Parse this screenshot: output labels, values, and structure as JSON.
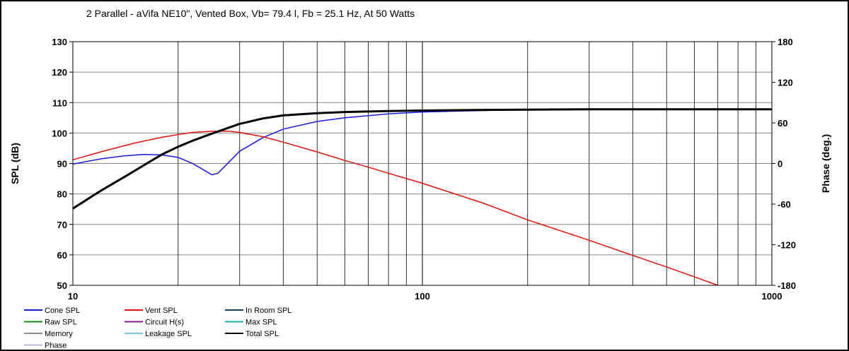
{
  "chart_data": {
    "type": "line",
    "title": "2 Parallel  - aVifa NE10\",  Vented Box, Vb= 79.4 l,  Fb = 25.1 Hz,  At 50 Watts",
    "ylabel": "SPL (dB)",
    "y2label": "Phase (deg.)",
    "xscale": "log",
    "xlim": [
      10,
      1000
    ],
    "ylim": [
      50,
      130
    ],
    "y2lim": [
      -180,
      180
    ],
    "xticks": [
      10,
      100,
      1000
    ],
    "xtick_labels": [
      "10",
      "100",
      "1000"
    ],
    "yticks": [
      130,
      120,
      110,
      100,
      90,
      80,
      70,
      60,
      50
    ],
    "ytick_labels": [
      "130",
      "120",
      "110",
      "100",
      "90",
      "80",
      "70",
      "60",
      "50"
    ],
    "y2ticks": [
      180,
      120,
      60,
      0,
      -60,
      -120,
      -180
    ],
    "y2tick_labels": [
      "180",
      "120",
      "60",
      "0",
      "-60",
      "-120",
      "-180"
    ],
    "grid": true,
    "legend_position": "bottom",
    "legend": [
      {
        "name": "Cone SPL",
        "color": "#1a1adb"
      },
      {
        "name": "Vent SPL",
        "color": "#e01010"
      },
      {
        "name": "In Room SPL",
        "color": "#1b3a5c"
      },
      {
        "name": "Raw SPL",
        "color": "#138a13"
      },
      {
        "name": "Circuit H(s)",
        "color": "#8a1a8a"
      },
      {
        "name": "Max SPL",
        "color": "#18b0b0"
      },
      {
        "name": "Memory",
        "color": "#8c8c8c"
      },
      {
        "name": "Leakage SPL",
        "color": "#7cc8f0"
      },
      {
        "name": "Total SPL",
        "color": "#000000"
      },
      {
        "name": "Phase",
        "color": "#b8b8dc"
      }
    ],
    "series": [
      {
        "name": "Cone SPL",
        "color": "#1a1adb",
        "x": [
          10,
          12,
          14,
          16,
          18,
          20,
          22,
          24,
          25,
          26,
          28,
          30,
          35,
          40,
          50,
          60,
          80,
          100,
          150,
          200,
          300,
          1000
        ],
        "y": [
          89.8,
          91.5,
          92.5,
          93.0,
          92.8,
          92.0,
          90.0,
          87.5,
          86.3,
          86.8,
          90.5,
          94.0,
          98.5,
          101.3,
          103.8,
          105.0,
          106.3,
          106.9,
          107.4,
          107.7,
          107.8,
          107.8
        ]
      },
      {
        "name": "Vent SPL",
        "color": "#e01010",
        "x": [
          10,
          12,
          15,
          18,
          20,
          22,
          25,
          28,
          30,
          35,
          40,
          50,
          60,
          70,
          80,
          100,
          150,
          200,
          300,
          400,
          500,
          600,
          700
        ],
        "y": [
          91.2,
          93.8,
          96.7,
          98.6,
          99.5,
          100.2,
          100.6,
          100.6,
          100.2,
          98.8,
          97.0,
          93.8,
          91.0,
          88.8,
          86.8,
          83.5,
          76.9,
          71.5,
          64.8,
          59.8,
          56.0,
          52.8,
          50.0
        ]
      },
      {
        "name": "Total SPL",
        "color": "#000000",
        "x": [
          10,
          12,
          14,
          16,
          18,
          20,
          22,
          25,
          28,
          30,
          35,
          40,
          50,
          60,
          80,
          100,
          150,
          200,
          300,
          500,
          1000
        ],
        "y": [
          75.2,
          81.0,
          85.5,
          89.5,
          93.0,
          95.5,
          97.5,
          99.8,
          101.8,
          103.0,
          104.8,
          105.8,
          106.5,
          106.9,
          107.2,
          107.4,
          107.6,
          107.7,
          107.8,
          107.8,
          107.8
        ]
      }
    ]
  }
}
